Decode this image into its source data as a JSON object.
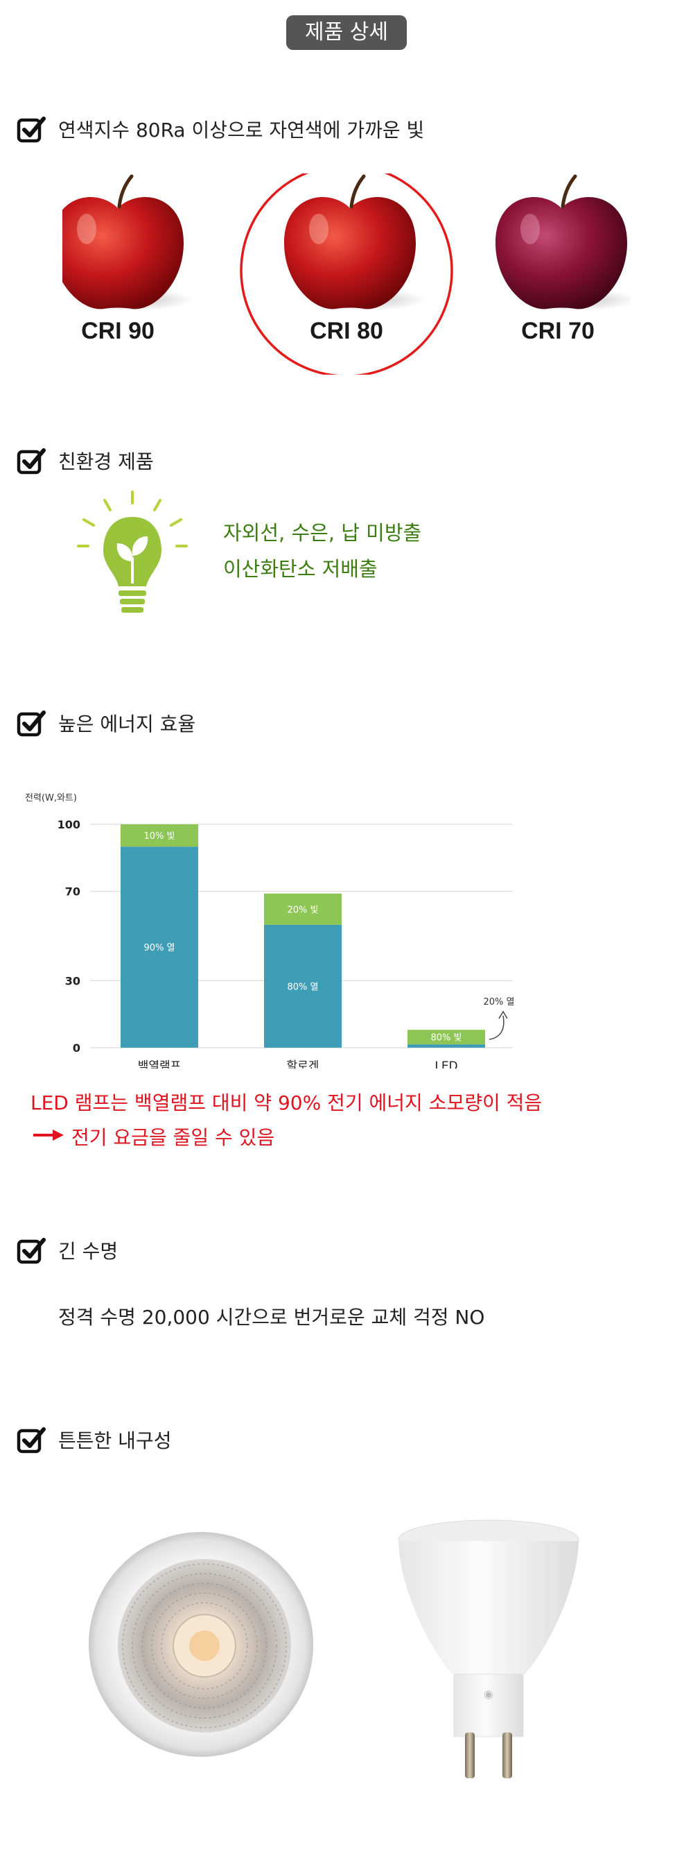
{
  "header": {
    "title": "제품 상세"
  },
  "sections": {
    "cri": {
      "title": "연색지수 80Ra 이상으로 자연색에 가까운 빛",
      "labels": [
        "CRI 90",
        "CRI 80",
        "CRI 70"
      ]
    },
    "eco": {
      "title": "친환경 제품",
      "lines": [
        "자외선, 수은, 납 미방출",
        "이산화탄소 저배출"
      ]
    },
    "energy": {
      "title": "높은 에너지 효율",
      "note_line1": "LED 램프는 백열램프 대비 약 90% 전기 에너지 소모량이 적음",
      "note_line2": "전기 요금을 줄일 수 있음"
    },
    "life": {
      "title": "긴 수명",
      "text": "정격 수명 20,000 시간으로 번거로운 교체 걱정 NO"
    },
    "durability": {
      "title": "튼튼한 내구성"
    }
  },
  "colors": {
    "heat": "#3f9db5",
    "light": "#8dc654",
    "accent_red": "#e0141e",
    "eco_green": "#3c7d12",
    "badge_bg": "#555555"
  },
  "chart_data": {
    "type": "bar",
    "ylabel": "전력(W,와트)",
    "yticks": [
      0,
      30,
      70,
      100
    ],
    "ylim": [
      0,
      100
    ],
    "grid": true,
    "categories": [
      "백열램프",
      "할로겐",
      "LED"
    ],
    "series": [
      {
        "key": "heat",
        "values": [
          90,
          55,
          1.5
        ],
        "labels": [
          "90% 열",
          "80% 열",
          ""
        ]
      },
      {
        "key": "light",
        "values": [
          10,
          14,
          6.5
        ],
        "labels": [
          "10% 빛",
          "20% 빛",
          "80% 빛"
        ]
      }
    ],
    "annotation": "20% 열"
  }
}
